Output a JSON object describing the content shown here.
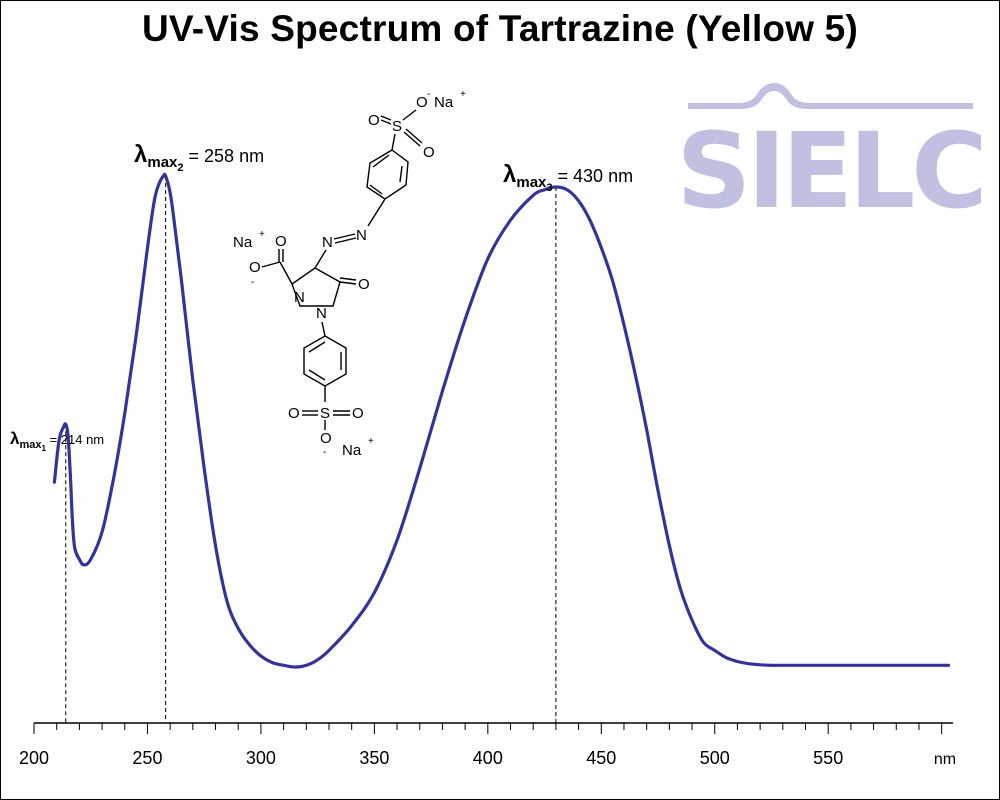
{
  "title": "UV-Vis Spectrum of Tartrazine (Yellow 5)",
  "logo_text": "SIELC",
  "compound": {
    "atoms": {
      "na_top": "Na",
      "na_left": "Na",
      "na_bottom": "Na",
      "plus": "+",
      "minus": "-",
      "o": "O",
      "s": "S",
      "n": "N"
    }
  },
  "peak_labels": [
    {
      "lambda": "λ",
      "sub_main": "max",
      "sub_index": "1",
      "text": " = 214 nm"
    },
    {
      "lambda": "λ",
      "sub_main": "max",
      "sub_index": "2",
      "text": " = 258 nm"
    },
    {
      "lambda": "λ",
      "sub_main": "max",
      "sub_index": "3",
      "text": " = 430 nm"
    }
  ],
  "chart_data": {
    "type": "line",
    "title": "UV-Vis Spectrum of Tartrazine (Yellow 5)",
    "xlabel": "nm",
    "ylabel": "",
    "xlim": [
      200,
      605
    ],
    "ylim": [
      0,
      1
    ],
    "x_ticks": [
      "200",
      "250",
      "300",
      "350",
      "400",
      "450",
      "500",
      "550"
    ],
    "x_unit_label": "nm",
    "y_axis_shown": false,
    "grid": false,
    "line_color": "#33339a",
    "peaks": [
      214,
      258,
      430
    ],
    "series": [
      {
        "x": [
          209,
          211,
          213,
          214,
          215,
          216,
          217,
          218,
          220,
          222,
          225,
          230,
          235,
          240,
          245,
          250,
          253,
          255,
          257,
          258,
          260,
          262,
          265,
          270,
          275,
          280,
          285,
          290,
          295,
          300,
          305,
          310,
          315,
          320,
          325,
          330,
          340,
          350,
          360,
          370,
          380,
          390,
          400,
          410,
          420,
          425,
          430,
          435,
          440,
          445,
          450,
          455,
          460,
          465,
          470,
          475,
          480,
          485,
          490,
          495,
          500,
          505,
          510,
          515,
          520,
          525,
          530,
          540,
          550,
          560,
          570,
          580,
          590,
          600,
          603
        ],
        "y": [
          0.335,
          0.41,
          0.435,
          0.44,
          0.42,
          0.35,
          0.26,
          0.215,
          0.195,
          0.185,
          0.195,
          0.245,
          0.34,
          0.46,
          0.6,
          0.76,
          0.845,
          0.875,
          0.89,
          0.89,
          0.86,
          0.8,
          0.7,
          0.52,
          0.36,
          0.22,
          0.12,
          0.07,
          0.04,
          0.02,
          0.008,
          0.003,
          0.0,
          0.003,
          0.013,
          0.03,
          0.075,
          0.135,
          0.23,
          0.36,
          0.5,
          0.63,
          0.74,
          0.81,
          0.855,
          0.865,
          0.87,
          0.865,
          0.845,
          0.81,
          0.76,
          0.7,
          0.62,
          0.53,
          0.43,
          0.32,
          0.22,
          0.14,
          0.085,
          0.045,
          0.03,
          0.017,
          0.01,
          0.006,
          0.004,
          0.003,
          0.003,
          0.003,
          0.003,
          0.003,
          0.003,
          0.003,
          0.003,
          0.003,
          0.003
        ]
      }
    ]
  }
}
